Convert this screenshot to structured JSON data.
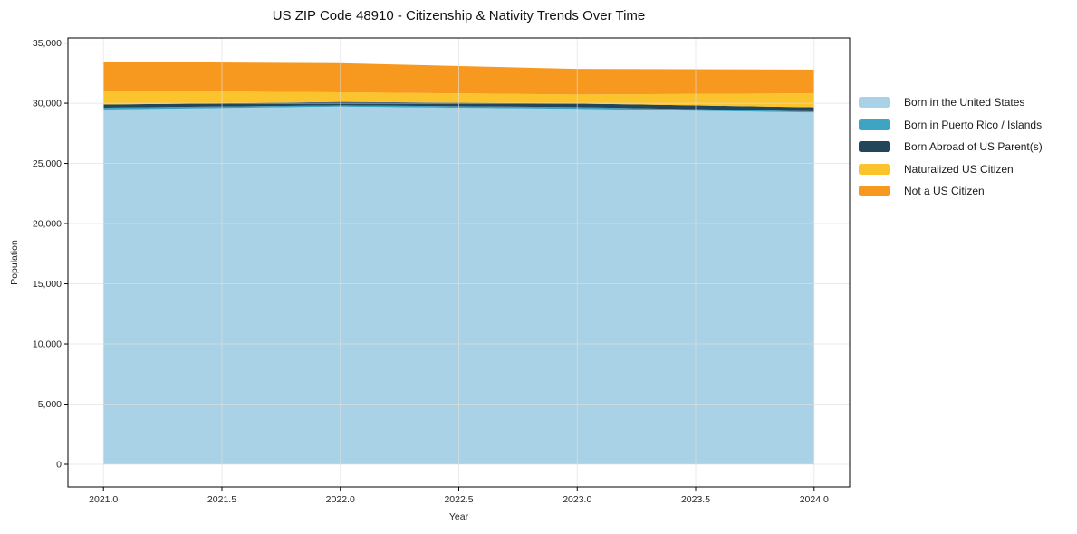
{
  "figure": {
    "title": "US ZIP Code 48910 - Citizenship & Nativity Trends Over Time"
  },
  "chart_data": {
    "type": "area",
    "stacked": true,
    "title": "US ZIP Code 48910 - Citizenship & Nativity Trends Over Time",
    "xlabel": "Year",
    "ylabel": "Population",
    "x": [
      2021,
      2022,
      2023,
      2024
    ],
    "series": [
      {
        "name": "Born in the United States",
        "color": "#A9D2E6",
        "values": [
          29480,
          29720,
          29530,
          29230
        ]
      },
      {
        "name": "Born in Puerto Rico / Islands",
        "color": "#3FA3C2",
        "values": [
          150,
          110,
          150,
          100
        ]
      },
      {
        "name": "Born Abroad of US Parent(s)",
        "color": "#23455A",
        "values": [
          260,
          280,
          300,
          330
        ]
      },
      {
        "name": "Naturalized US Citizen",
        "color": "#FBC42D",
        "values": [
          1150,
          800,
          750,
          1170
        ]
      },
      {
        "name": "Not a US Citizen",
        "color": "#F7981F",
        "values": [
          2400,
          2420,
          2120,
          1970
        ]
      }
    ],
    "totals": [
      33440,
      33330,
      32850,
      32800
    ],
    "xlim": [
      2020.85,
      2024.15
    ],
    "ylim": [
      -1880,
      35420
    ],
    "xticks": {
      "values": [
        2021.0,
        2021.5,
        2022.0,
        2022.5,
        2023.0,
        2023.5,
        2024.0
      ],
      "labels": [
        "2021.0",
        "2021.5",
        "2022.0",
        "2022.5",
        "2023.0",
        "2023.5",
        "2024.0"
      ]
    },
    "yticks": {
      "values": [
        0,
        5000,
        10000,
        15000,
        20000,
        25000,
        30000,
        35000
      ],
      "labels": [
        "0",
        "5,000",
        "10,000",
        "15,000",
        "20,000",
        "25,000",
        "30,000",
        "35,000"
      ]
    },
    "grid": true,
    "legend_position": "right-outside"
  }
}
